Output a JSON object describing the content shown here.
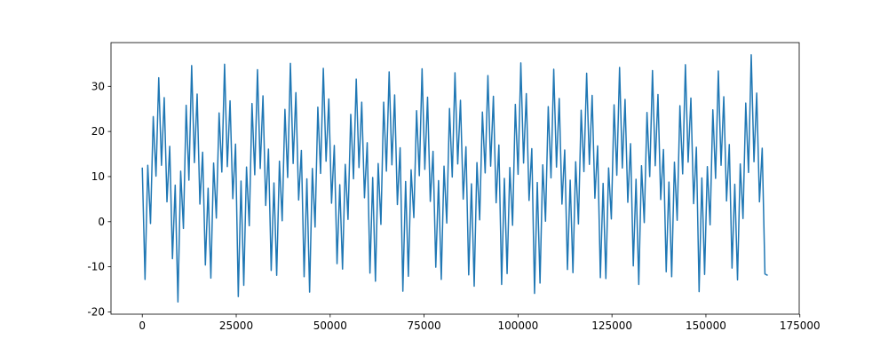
{
  "chart_data": {
    "type": "line",
    "color": "#1f77b4",
    "xlim": [
      -8325,
      174825
    ],
    "ylim": [
      -20.5,
      39.7
    ],
    "xticks": [
      0,
      25000,
      50000,
      75000,
      100000,
      125000,
      150000,
      175000
    ],
    "yticks": [
      -20,
      -10,
      0,
      10,
      20,
      30
    ],
    "x": [
      0,
      730,
      1460,
      2190,
      2920,
      3650,
      4380,
      5110,
      5840,
      6570,
      7300,
      8030,
      8760,
      9490,
      10220,
      10950,
      11680,
      12410,
      13140,
      13870,
      14600,
      15330,
      16060,
      16790,
      17520,
      18250,
      18980,
      19710,
      20440,
      21170,
      21900,
      22630,
      23360,
      24090,
      24820,
      25550,
      26280,
      27010,
      27740,
      28470,
      29200,
      29930,
      30660,
      31390,
      32120,
      32850,
      33580,
      34310,
      35040,
      35770,
      36500,
      37230,
      37960,
      38690,
      39420,
      40150,
      40880,
      41610,
      42340,
      43070,
      43800,
      44530,
      45260,
      45990,
      46720,
      47450,
      48180,
      48910,
      49640,
      50370,
      51100,
      51830,
      52560,
      53290,
      54020,
      54750,
      55480,
      56210,
      56940,
      57670,
      58400,
      59130,
      59860,
      60590,
      61320,
      62050,
      62780,
      63510,
      64240,
      64970,
      65700,
      66430,
      67160,
      67890,
      68620,
      69350,
      70080,
      70810,
      71540,
      72270,
      73000,
      73730,
      74460,
      75190,
      75920,
      76650,
      77380,
      78110,
      78840,
      79570,
      80300,
      81030,
      81760,
      82490,
      83220,
      83950,
      84680,
      85410,
      86140,
      86870,
      87600,
      88330,
      89060,
      89790,
      90520,
      91250,
      91980,
      92710,
      93440,
      94170,
      94900,
      95630,
      96360,
      97090,
      97820,
      98550,
      99280,
      100010,
      100740,
      101470,
      102200,
      102930,
      103660,
      104390,
      105120,
      105850,
      106580,
      107310,
      108040,
      108770,
      109500,
      110230,
      110960,
      111690,
      112420,
      113150,
      113880,
      114610,
      115340,
      116070,
      116800,
      117530,
      118260,
      118990,
      119720,
      120450,
      121180,
      121910,
      122640,
      123370,
      124100,
      124830,
      125560,
      126290,
      127020,
      127750,
      128480,
      129210,
      129940,
      130670,
      131400,
      132130,
      132860,
      133590,
      134320,
      135050,
      135780,
      136510,
      137240,
      137970,
      138700,
      139430,
      140160,
      140890,
      141620,
      142350,
      143080,
      143810,
      144540,
      145270,
      146000,
      146730,
      147460,
      148190,
      148920,
      149650,
      150380,
      151110,
      151840,
      152570,
      153300,
      154030,
      154760,
      155490,
      156220,
      156950,
      157680,
      158410,
      159140,
      159870,
      160600,
      161330,
      162060,
      162790,
      163520,
      164250,
      164980,
      165710,
      166440
    ],
    "values": [
      12.0,
      -12.8,
      12.5,
      -0.4,
      23.3,
      10.1,
      31.9,
      12.5,
      27.5,
      4.4,
      16.7,
      -8.2,
      8.1,
      -17.8,
      11.2,
      -1.5,
      25.8,
      9.2,
      34.6,
      13.1,
      28.3,
      3.9,
      15.4,
      -9.6,
      7.4,
      -12.5,
      13.0,
      0.8,
      24.1,
      11.0,
      34.9,
      12.2,
      26.8,
      5.1,
      17.2,
      -16.6,
      9.0,
      -14.1,
      12.1,
      -0.9,
      26.2,
      10.4,
      33.7,
      11.8,
      27.9,
      3.6,
      16.1,
      -10.8,
      8.6,
      -11.9,
      13.4,
      0.2,
      24.9,
      9.8,
      35.1,
      12.9,
      28.6,
      4.8,
      15.8,
      -12.2,
      9.5,
      -15.6,
      11.8,
      -1.2,
      25.4,
      10.7,
      34.0,
      13.4,
      27.2,
      4.1,
      16.9,
      -9.3,
      8.2,
      -10.5,
      12.7,
      0.5,
      23.8,
      9.5,
      31.6,
      12.0,
      26.5,
      5.3,
      17.5,
      -11.4,
      9.8,
      -13.2,
      12.9,
      -0.6,
      26.5,
      11.2,
      33.2,
      12.6,
      28.1,
      3.8,
      16.4,
      -15.4,
      8.9,
      -12.1,
      11.5,
      0.9,
      24.6,
      10.2,
      33.9,
      11.6,
      27.6,
      4.5,
      15.6,
      -10.1,
      9.1,
      -12.8,
      12.3,
      -0.3,
      25.1,
      9.9,
      33.0,
      12.8,
      26.9,
      5.0,
      16.6,
      -11.8,
      8.4,
      -14.3,
      13.1,
      0.4,
      24.3,
      10.8,
      32.4,
      12.3,
      27.8,
      4.2,
      17.0,
      -13.9,
      9.6,
      -11.5,
      12.0,
      -0.8,
      26.0,
      10.5,
      35.2,
      13.0,
      28.4,
      4.7,
      16.2,
      -15.9,
      8.7,
      -13.6,
      12.6,
      0.1,
      25.5,
      9.7,
      33.8,
      12.1,
      27.3,
      3.9,
      15.9,
      -10.6,
      9.2,
      -11.3,
      13.3,
      -0.5,
      24.7,
      11.1,
      32.9,
      12.7,
      28.0,
      5.2,
      16.8,
      -12.4,
      8.5,
      -12.6,
      11.9,
      0.6,
      25.9,
      10.3,
      34.2,
      11.9,
      27.1,
      4.3,
      17.3,
      -9.8,
      9.4,
      -13.9,
      12.4,
      -0.2,
      24.2,
      10.0,
      33.5,
      12.4,
      28.2,
      4.9,
      16.0,
      -11.1,
      8.8,
      -12.2,
      13.2,
      0.3,
      25.7,
      10.6,
      34.8,
      13.2,
      27.4,
      4.0,
      16.5,
      -15.5,
      9.7,
      -11.7,
      12.2,
      -0.7,
      24.8,
      9.6,
      33.4,
      12.5,
      27.7,
      4.6,
      17.1,
      -10.3,
      8.3,
      -12.9,
      12.8,
      0.7,
      26.3,
      10.9,
      37.0,
      13.3,
      28.5,
      4.4,
      16.3,
      -11.6,
      -11.9
    ]
  }
}
